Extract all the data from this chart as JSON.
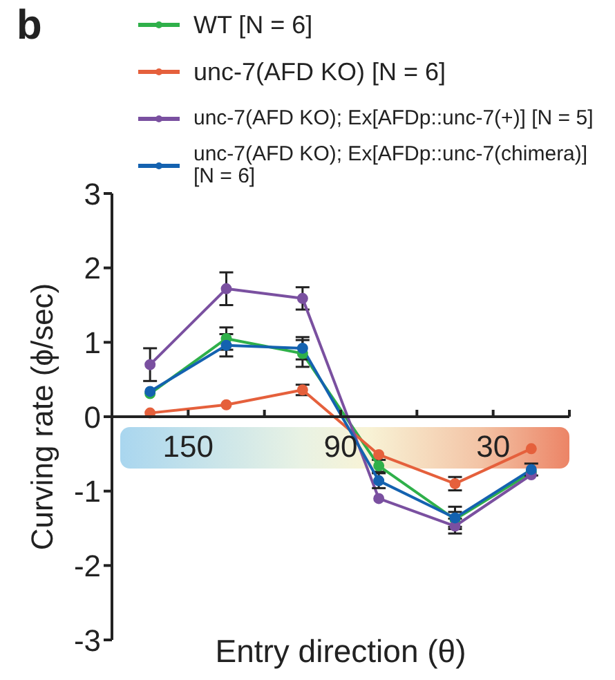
{
  "chart_data": {
    "type": "line",
    "title": "b",
    "xlabel": "Entry direction (θ)",
    "ylabel": "Curving rate (ϕ/sec)",
    "x": [
      165,
      135,
      105,
      75,
      45,
      15
    ],
    "xlim": [
      180,
      0
    ],
    "xticks": [
      {
        "value": 180,
        "label": null
      },
      150,
      {
        "value": 120,
        "label": null
      },
      90,
      {
        "value": 60,
        "label": null
      },
      30,
      {
        "value": 0,
        "label": null
      }
    ],
    "ylim": [
      -3,
      3
    ],
    "yticks": [
      -3,
      -2,
      -1,
      0,
      1,
      2,
      3
    ],
    "series": [
      {
        "name": "WT [N = 6]",
        "color": "#2fb04a",
        "values": [
          0.31,
          1.05,
          0.85,
          -0.66,
          -1.38,
          -0.75
        ],
        "errors": [
          null,
          0.15,
          0.18,
          0.08,
          0.1,
          null
        ]
      },
      {
        "name": "unc-7(AFD KO) [N = 6]",
        "color": "#e5603c",
        "values": [
          0.05,
          0.16,
          0.36,
          -0.51,
          -0.9,
          -0.43
        ],
        "errors": [
          null,
          null,
          0.07,
          null,
          0.09,
          null
        ]
      },
      {
        "name": "unc-7(AFD KO); Ex[AFDp::unc-7(+)] [N = 5]",
        "color": "#7a50a0",
        "values": [
          0.7,
          1.72,
          1.59,
          -1.1,
          -1.47,
          -0.78
        ],
        "errors": [
          0.22,
          0.22,
          0.15,
          null,
          0.1,
          null
        ]
      },
      {
        "name": "unc-7(AFD KO); Ex[AFDp::unc-7(chimera)] [N = 6]",
        "color": "#1462b0",
        "values": [
          0.34,
          0.96,
          0.92,
          -0.86,
          -1.36,
          -0.71
        ],
        "errors": [
          null,
          0.15,
          0.15,
          0.1,
          0.15,
          0.08
        ]
      }
    ],
    "marker": "circle",
    "line_style": "solid",
    "legend": "top",
    "grid": false
  }
}
